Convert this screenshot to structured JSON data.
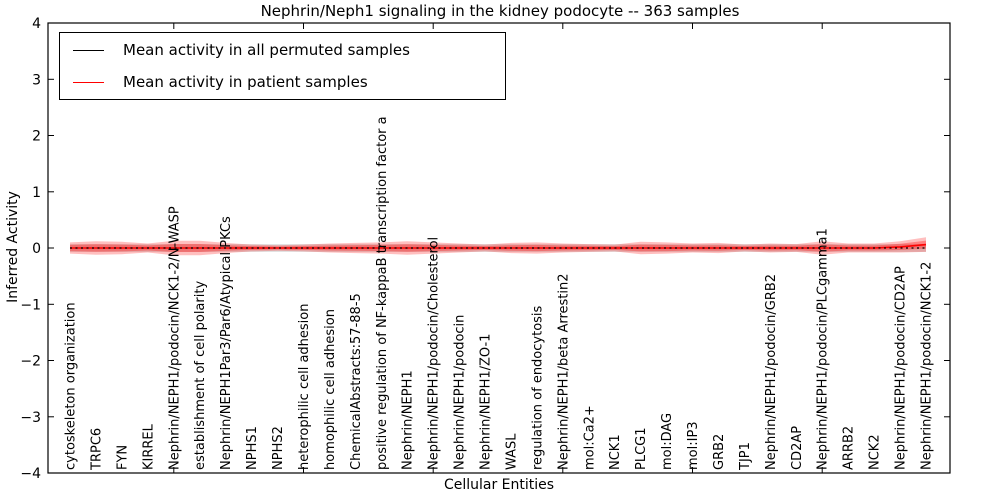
{
  "figure": {
    "background": "#ffffff"
  },
  "legend": {
    "position": "upper left",
    "entries": [
      {
        "label": "Mean activity in all permuted samples",
        "color": "#000000"
      },
      {
        "label": "Mean activity in patient samples",
        "color": "#ff0000"
      }
    ]
  },
  "chart_data": {
    "type": "line",
    "title": "Nephrin/Neph1 signaling in the kidney podocyte -- 363 samples",
    "xlabel": "Cellular Entities",
    "ylabel": "Inferred Activity",
    "ylim": [
      -4,
      4
    ],
    "y_ticks": [
      4,
      3,
      2,
      1,
      0,
      -1,
      -2,
      -3,
      -4
    ],
    "x_major_tick_indices": [
      4,
      9,
      14,
      19,
      24,
      29
    ],
    "grid": false,
    "legend_position": "upper left",
    "categories": [
      "cytoskeleton organization",
      "TRPC6",
      "FYN",
      "KIRREL",
      "Nephrin/NEPH1/podocin/NCK1-2/N-WASP",
      "establishment of cell polarity",
      "Nephrin/NEPH1Par3/Par6/Atypical PKCs",
      "NPHS1",
      "NPHS2",
      "heterophilic cell adhesion",
      "homophilic cell adhesion",
      "ChemicalAbstracts:57-88-5",
      "positive regulation of NF-kappaB transcription factor a",
      "Nephrin/NEPH1",
      "Nephrin/NEPH1/podocin/Cholesterol",
      "Nephrin/NEPH1/podocin",
      "Nephrin/NEPH1/ZO-1",
      "WASL",
      "regulation of endocytosis",
      "Nephrin/NEPH1/beta Arrestin2",
      "mol:Ca2+",
      "NCK1",
      "PLCG1",
      "mol:DAG",
      "mol:IP3",
      "GRB2",
      "TJP1",
      "Nephrin/NEPH1/podocin/GRB2",
      "CD2AP",
      "Nephrin/NEPH1/podocin/PLCgamma1",
      "ARRB2",
      "NCK2",
      "Nephrin/NEPH1/podocin/CD2AP",
      "Nephrin/NEPH1/podocin/NCK1-2"
    ],
    "series": [
      {
        "name": "Mean activity in all permuted samples",
        "color": "#000000",
        "style": "dotted",
        "values": [
          0,
          0,
          0,
          0,
          0,
          0,
          0,
          0,
          0,
          0,
          0,
          0,
          0,
          0,
          0,
          0,
          0,
          0,
          0,
          0,
          0,
          0,
          0,
          0,
          0,
          0,
          0,
          0,
          0,
          0,
          0,
          0,
          0,
          0
        ],
        "band": {
          "name": "permuted-samples-std",
          "color": "#bbbbbb",
          "halfwidth": 0.07
        }
      },
      {
        "name": "Mean activity in patient samples",
        "color": "#ff0000",
        "style": "solid",
        "values": [
          0,
          0,
          0,
          0,
          0,
          0,
          0,
          0,
          0,
          0,
          0,
          0,
          0,
          0,
          0,
          0,
          0,
          0,
          0,
          0,
          0,
          0,
          0,
          0,
          0,
          0,
          0,
          0,
          0,
          0,
          0,
          0,
          0.02,
          0.06
        ],
        "band": {
          "name": "patient-samples-std",
          "color": "#ff0000",
          "halfwidth": [
            0.1,
            0.12,
            0.11,
            0.08,
            0.13,
            0.13,
            0.09,
            0.06,
            0.05,
            0.06,
            0.08,
            0.09,
            0.1,
            0.12,
            0.1,
            0.08,
            0.06,
            0.09,
            0.1,
            0.08,
            0.07,
            0.06,
            0.11,
            0.1,
            0.08,
            0.09,
            0.06,
            0.08,
            0.07,
            0.12,
            0.08,
            0.08,
            0.1,
            0.13
          ]
        }
      }
    ]
  }
}
